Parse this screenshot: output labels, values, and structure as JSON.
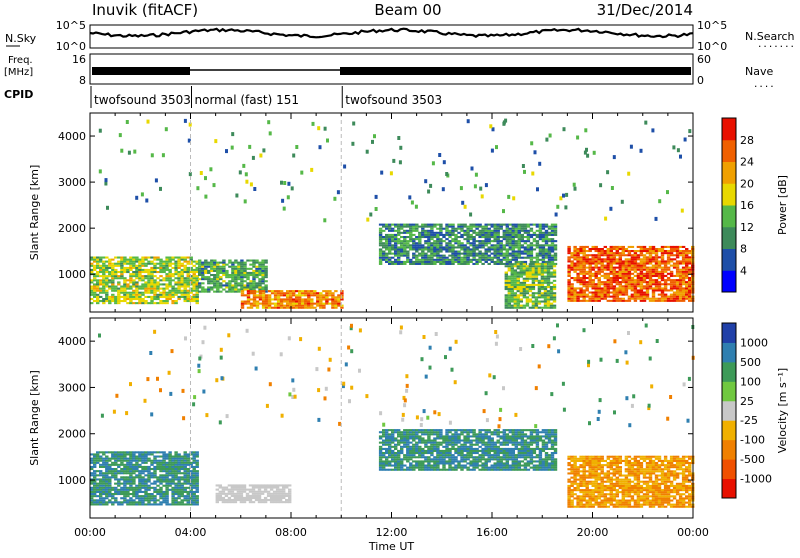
{
  "header": {
    "station": "Inuvik (fitACF)",
    "beam": "Beam 00",
    "date": "31/Dec/2014"
  },
  "noise_panel": {
    "left_label": "N.Sky",
    "right_label": "N.Search",
    "right_dots": ".......",
    "left_ticks": [
      "10^5",
      "10^0"
    ],
    "right_ticks": [
      "10^5",
      "10^0"
    ]
  },
  "freq_panel": {
    "left_label_top": "Freq.",
    "left_label_bottom": "[MHz]",
    "right_label": "Nave",
    "right_dots": "....",
    "left_ticks": [
      "16",
      "8"
    ],
    "right_ticks": [
      "60",
      "0"
    ]
  },
  "cpid": {
    "label": "CPID",
    "segments": [
      {
        "name": "twofsound 3503",
        "start_h": 0,
        "end_h": 4
      },
      {
        "name": "normal (fast) 151",
        "start_h": 4,
        "end_h": 10
      },
      {
        "name": "twofsound 3503",
        "start_h": 10,
        "end_h": 24
      }
    ]
  },
  "colors": {
    "power_scale": [
      "#0000ff",
      "#1e4fa8",
      "#3d8a5a",
      "#55b848",
      "#e8d800",
      "#f0a000",
      "#f06000",
      "#e81000"
    ],
    "velocity_scale": [
      "#2040a8",
      "#2f7fb0",
      "#3d9a58",
      "#70c840",
      "#c8c8c8",
      "#f0b000",
      "#f08000",
      "#f05000",
      "#e81000"
    ]
  },
  "chart_data": [
    {
      "type": "heatmap",
      "name": "power",
      "ylabel": "Slant Range [km]",
      "ylim": [
        180,
        4500
      ],
      "yticks": [
        "1000",
        "2000",
        "3000",
        "4000"
      ],
      "xlim": [
        0,
        24
      ],
      "xticks": [
        "00:00",
        "04:00",
        "08:00",
        "12:00",
        "16:00",
        "20:00",
        "00:00"
      ],
      "colorbar": {
        "title": "Power [dB]",
        "ticks": [
          "28",
          "24",
          "20",
          "16",
          "12",
          "8",
          "4"
        ]
      },
      "regions": [
        {
          "t0": 0.0,
          "t1": 4.3,
          "r0": 350,
          "r1": 1350,
          "value": 18
        },
        {
          "t0": 4.3,
          "t1": 7.0,
          "r0": 600,
          "r1": 1300,
          "value": 14
        },
        {
          "t0": 6.0,
          "t1": 10.0,
          "r0": 250,
          "r1": 650,
          "value": 26
        },
        {
          "t0": 11.5,
          "t1": 18.5,
          "r0": 1200,
          "r1": 2100,
          "value": 12
        },
        {
          "t0": 16.5,
          "t1": 18.5,
          "r0": 250,
          "r1": 1200,
          "value": 16
        },
        {
          "t0": 19.0,
          "t1": 24.0,
          "r0": 400,
          "r1": 1600,
          "value": 28
        }
      ]
    },
    {
      "type": "heatmap",
      "name": "velocity",
      "xlabel": "Time UT",
      "ylabel": "Slant Range [km]",
      "ylim": [
        180,
        4500
      ],
      "yticks": [
        "1000",
        "2000",
        "3000",
        "4000"
      ],
      "xlim": [
        0,
        24
      ],
      "xticks": [
        "00:00",
        "04:00",
        "08:00",
        "12:00",
        "16:00",
        "20:00",
        "00:00"
      ],
      "colorbar": {
        "title": "Velocity [m s⁻¹]",
        "ticks": [
          "1000",
          "500",
          "100",
          "25",
          "-25",
          "-100",
          "-500",
          "-1000"
        ]
      },
      "regions": [
        {
          "t0": 0.0,
          "t1": 4.3,
          "r0": 450,
          "r1": 1600,
          "value": 100
        },
        {
          "t0": 5.0,
          "t1": 8.0,
          "r0": 500,
          "r1": 900,
          "value": 0
        },
        {
          "t0": 11.5,
          "t1": 18.5,
          "r0": 1200,
          "r1": 2100,
          "value": 100
        },
        {
          "t0": 19.0,
          "t1": 24.0,
          "r0": 400,
          "r1": 1500,
          "value": -100
        }
      ]
    }
  ]
}
